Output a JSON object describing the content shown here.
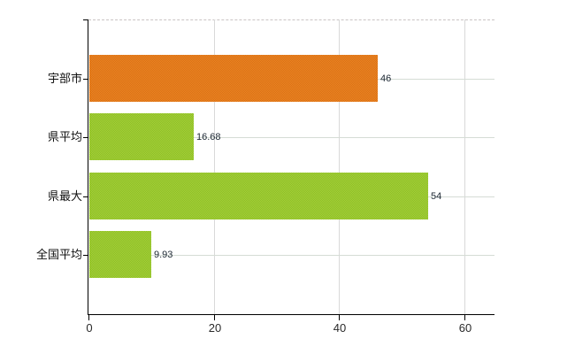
{
  "chart_data": {
    "type": "bar",
    "orientation": "horizontal",
    "title": "",
    "categories": [
      "宇部市",
      "県平均",
      "県最大",
      "全国平均"
    ],
    "values": [
      46,
      16.68,
      54,
      9.93
    ],
    "value_labels": [
      "46",
      "16.68",
      "54",
      "9.93"
    ],
    "bar_styles": [
      {
        "light": "#ec8621",
        "dark": "#d96f17"
      },
      {
        "light": "#a6d138",
        "dark": "#8cbd27"
      },
      {
        "light": "#a6d138",
        "dark": "#8cbd27"
      },
      {
        "light": "#a6d138",
        "dark": "#8cbd27"
      }
    ],
    "x_ticks": [
      0,
      20,
      40,
      60
    ],
    "x_tick_labels": [
      "0",
      "20",
      "40",
      "60"
    ],
    "xlim": [
      0,
      64.8
    ],
    "grid": true,
    "legend": null,
    "colors": {
      "axis": "#000000",
      "vertical_grid": "#d9d9d9",
      "horizontal_grid": "#d5dcd5",
      "top_border_dashed": "#c9c3c3",
      "background": "#ffffff"
    }
  }
}
